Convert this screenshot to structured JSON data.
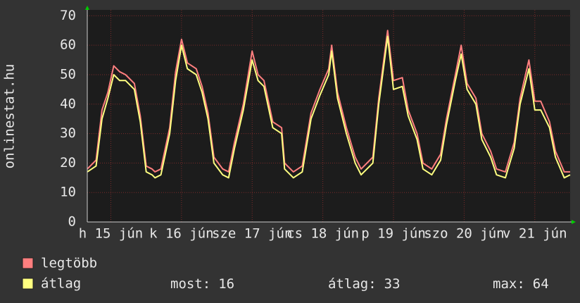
{
  "chart_data": {
    "type": "line",
    "ylabel": "onlinestat.hu",
    "x": [
      0,
      3,
      5,
      7,
      9,
      11,
      13,
      16,
      18,
      20,
      22,
      23,
      25,
      28,
      30,
      32,
      34,
      37,
      39,
      41,
      43,
      46,
      48,
      50,
      53,
      56,
      58,
      60,
      63,
      66,
      67,
      70,
      73,
      76,
      79,
      82,
      83,
      85,
      88,
      91,
      93,
      97,
      99,
      102,
      104,
      107,
      109,
      112,
      114,
      117,
      120,
      122,
      125,
      127,
      129,
      132,
      134,
      137,
      139,
      142,
      145,
      147,
      150,
      152,
      154,
      157,
      159,
      162,
      164
    ],
    "series": [
      {
        "name": "legtöbb",
        "color": "#ff7f7f",
        "values": [
          18,
          21,
          38,
          44,
          53,
          51,
          50,
          47,
          36,
          19,
          18,
          17,
          18,
          32,
          51,
          62,
          54,
          52,
          46,
          37,
          22,
          18,
          17,
          27,
          40,
          58,
          50,
          48,
          34,
          32,
          20,
          17,
          19,
          37,
          45,
          52,
          60,
          44,
          32,
          22,
          18,
          22,
          42,
          65,
          48,
          49,
          38,
          30,
          20,
          18,
          23,
          35,
          50,
          60,
          47,
          42,
          30,
          24,
          18,
          17,
          27,
          42,
          55,
          41,
          41,
          34,
          24,
          17,
          17
        ]
      },
      {
        "name": "átlag",
        "color": "#ffff80",
        "values": [
          17,
          19,
          35,
          42,
          50,
          48,
          48,
          45,
          34,
          17,
          16,
          15,
          16,
          30,
          48,
          60,
          52,
          50,
          44,
          35,
          20,
          16,
          15,
          25,
          38,
          55,
          48,
          46,
          32,
          30,
          18,
          15,
          17,
          35,
          43,
          50,
          58,
          42,
          30,
          20,
          16,
          20,
          40,
          63,
          45,
          46,
          36,
          28,
          18,
          16,
          21,
          33,
          48,
          57,
          45,
          40,
          28,
          22,
          16,
          15,
          25,
          40,
          52,
          38,
          38,
          32,
          22,
          15,
          16
        ]
      }
    ],
    "xlim": [
      0,
      164
    ],
    "ylim": [
      0,
      72
    ],
    "xticks": [
      {
        "value": 8,
        "label": "h 15 jún"
      },
      {
        "value": 32,
        "label": "k 16 jún"
      },
      {
        "value": 56,
        "label": "sze 17 jún"
      },
      {
        "value": 80,
        "label": "cs 18 jún"
      },
      {
        "value": 104,
        "label": "p 19 jún"
      },
      {
        "value": 128,
        "label": "szo 20 jún"
      },
      {
        "value": 152,
        "label": "v 21 jún"
      }
    ],
    "yticks": [
      0,
      10,
      20,
      30,
      40,
      50,
      60,
      70
    ],
    "grid": true,
    "stats": [
      {
        "label": "most:",
        "value": 16
      },
      {
        "label": "átlag:",
        "value": 33
      },
      {
        "label": "max:",
        "value": 64
      }
    ]
  }
}
